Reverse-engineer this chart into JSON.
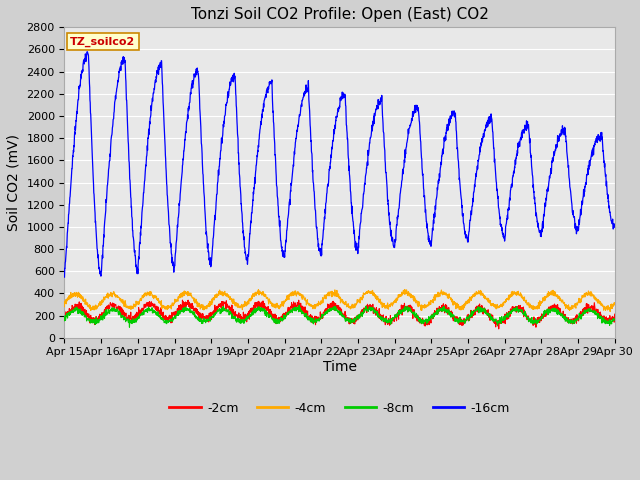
{
  "title": "Tonzi Soil CO2 Profile: Open (East) CO2",
  "xlabel": "Time",
  "ylabel": "Soil CO2 (mV)",
  "ylim": [
    0,
    2800
  ],
  "yticks": [
    0,
    200,
    400,
    600,
    800,
    1000,
    1200,
    1400,
    1600,
    1800,
    2000,
    2200,
    2400,
    2600,
    2800
  ],
  "x_labels": [
    "Apr 15",
    "Apr 16",
    "Apr 17",
    "Apr 18",
    "Apr 19",
    "Apr 20",
    "Apr 21",
    "Apr 22",
    "Apr 23",
    "Apr 24",
    "Apr 25",
    "Apr 26",
    "Apr 27",
    "Apr 28",
    "Apr 29",
    "Apr 30"
  ],
  "legend_labels": [
    "-2cm",
    "-4cm",
    "-8cm",
    "-16cm"
  ],
  "legend_colors": [
    "#ff0000",
    "#ffaa00",
    "#00cc00",
    "#0000ff"
  ],
  "watermark_text": "TZ_soilco2",
  "watermark_bg": "#ffffcc",
  "watermark_border": "#cc8800",
  "fig_bg": "#d0d0d0",
  "plot_bg": "#e8e8e8",
  "grid_color": "#ffffff",
  "title_fontsize": 11,
  "axis_fontsize": 10,
  "tick_fontsize": 8,
  "n_points": 2160
}
